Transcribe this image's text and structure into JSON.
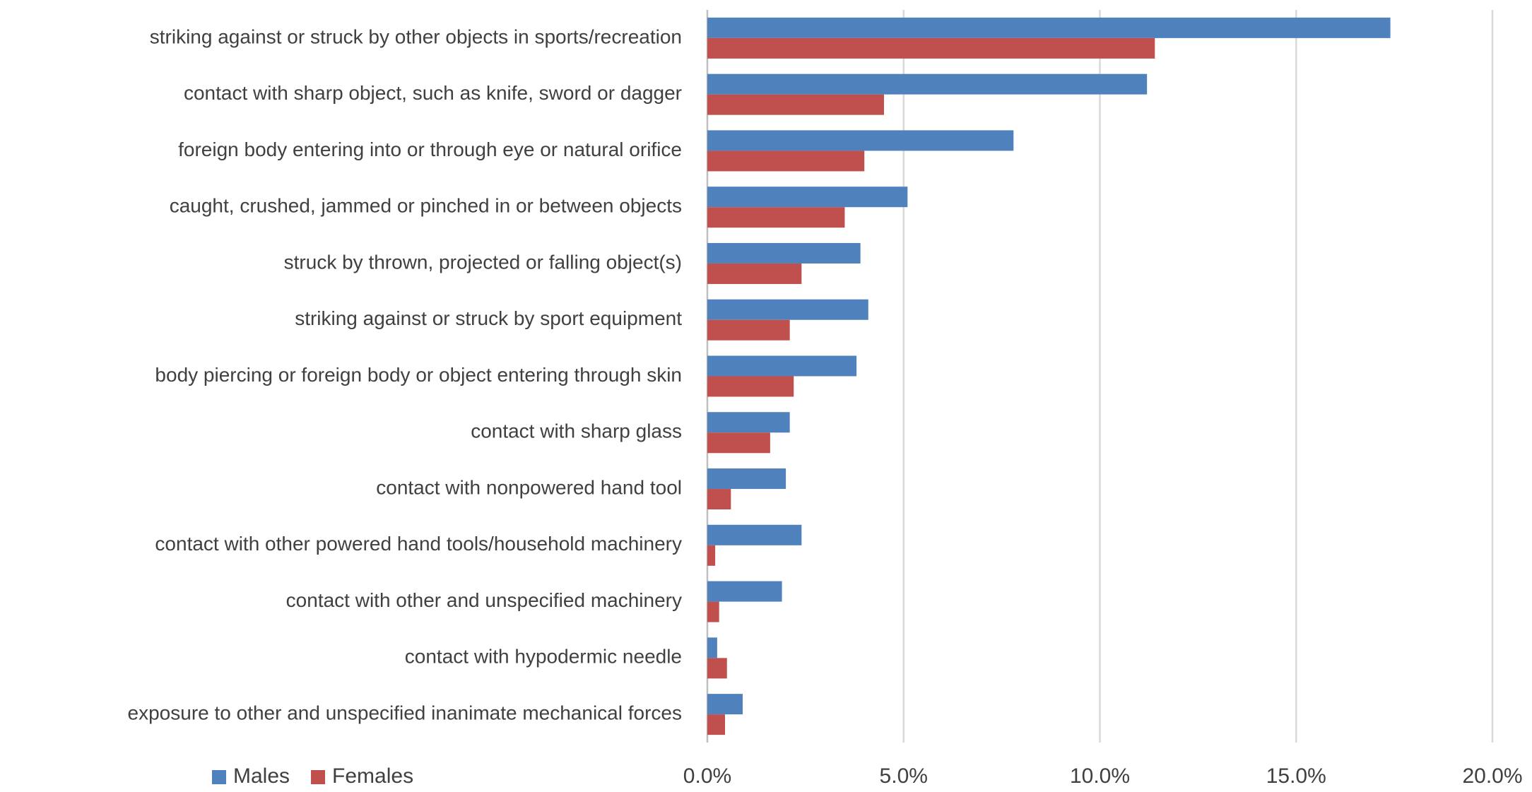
{
  "chart_data": {
    "type": "hbar",
    "categories": [
      "striking against or struck by other objects in sports/recreation",
      "contact with sharp object, such as knife, sword or dagger",
      "foreign body entering into or through eye or natural orifice",
      "caught, crushed, jammed or pinched in or between objects",
      "struck by thrown, projected or falling object(s)",
      "striking against or struck by sport equipment",
      "body piercing or foreign body or object entering through skin",
      "contact with sharp glass",
      "contact with nonpowered hand tool",
      "contact with other powered hand tools/household machinery",
      "contact with other and unspecified machinery",
      "contact with hypodermic needle",
      "exposure to other and unspecified inanimate mechanical forces"
    ],
    "series": [
      {
        "name": "Males",
        "color": "#4f81bd",
        "values": [
          17.4,
          11.2,
          7.8,
          5.1,
          3.9,
          4.1,
          3.8,
          2.1,
          2.0,
          2.4,
          1.9,
          0.25,
          0.9
        ]
      },
      {
        "name": "Females",
        "color": "#c0504d",
        "values": [
          11.4,
          4.5,
          4.0,
          3.5,
          2.4,
          2.1,
          2.2,
          1.6,
          0.6,
          0.2,
          0.3,
          0.5,
          0.45
        ]
      }
    ],
    "xlim": [
      0,
      20
    ],
    "xticks": [
      {
        "value": 0,
        "label": "0.0%"
      },
      {
        "value": 5,
        "label": "5.0%"
      },
      {
        "value": 10,
        "label": "10.0%"
      },
      {
        "value": 15,
        "label": "15.0%"
      },
      {
        "value": 20,
        "label": "20.0%"
      }
    ],
    "grid": true,
    "legend": "bottom-left"
  }
}
